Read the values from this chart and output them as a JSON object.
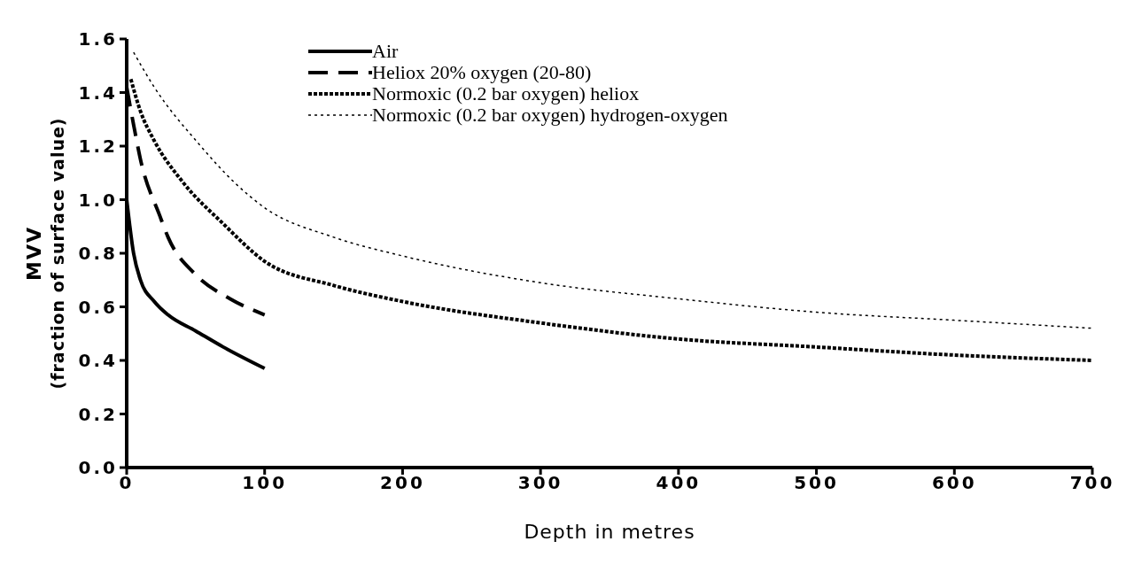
{
  "chart_data": {
    "type": "line",
    "xlabel": "Depth in metres",
    "ylabel": "MVV\n(fraction of surface value)",
    "xlim": [
      0,
      700
    ],
    "xticks": [
      0,
      100,
      200,
      300,
      400,
      500,
      600,
      700
    ],
    "ylim": [
      0,
      1.6
    ],
    "yticks": [
      {
        "value": 0,
        "label": "0.0"
      },
      {
        "value": 0.2,
        "label": "0.2"
      },
      {
        "value": 0.4,
        "label": "0.4"
      },
      {
        "value": 0.6,
        "label": "0.6"
      },
      {
        "value": 0.8,
        "label": "0.8"
      },
      {
        "value": 1,
        "label": "1.0"
      },
      {
        "value": 1.2,
        "label": "1.2"
      },
      {
        "value": 1.4,
        "label": "1.4"
      },
      {
        "value": 1.6,
        "label": "1.6"
      }
    ],
    "legend": "top",
    "marker": "none",
    "series": [
      {
        "name": "Air",
        "color": "#000000",
        "line_style": "solid",
        "x": [
          0,
          5,
          10,
          20,
          30,
          50,
          70,
          100
        ],
        "values": [
          1.0,
          0.8,
          0.7,
          0.62,
          0.57,
          0.51,
          0.45,
          0.37
        ]
      },
      {
        "name": "Heliox 20% oxygen (20-80)",
        "color": "#000000",
        "line_style": "dashed",
        "x": [
          0,
          5,
          10,
          24,
          30,
          50,
          75,
          100
        ],
        "values": [
          1.42,
          1.28,
          1.15,
          0.94,
          0.86,
          0.72,
          0.63,
          0.57
        ]
      },
      {
        "name": "Normoxic (0.2 bar oxygen) heliox",
        "color": "#000000",
        "line_style": "dotted",
        "x": [
          3,
          10,
          20,
          40,
          70,
          100,
          150,
          200,
          300,
          400,
          500,
          600,
          700
        ],
        "values": [
          1.45,
          1.33,
          1.22,
          1.07,
          0.91,
          0.77,
          0.68,
          0.62,
          0.54,
          0.48,
          0.45,
          0.42,
          0.4
        ]
      },
      {
        "name": "Normoxic (0.2 bar oxygen) hydrogen-oxygen",
        "color": "#000000",
        "line_style": "dotted",
        "x": [
          5,
          20,
          52,
          79,
          100,
          150,
          200,
          300,
          400,
          500,
          600,
          700
        ],
        "values": [
          1.55,
          1.42,
          1.21,
          1.06,
          0.97,
          0.86,
          0.79,
          0.69,
          0.63,
          0.58,
          0.55,
          0.52
        ]
      }
    ]
  }
}
